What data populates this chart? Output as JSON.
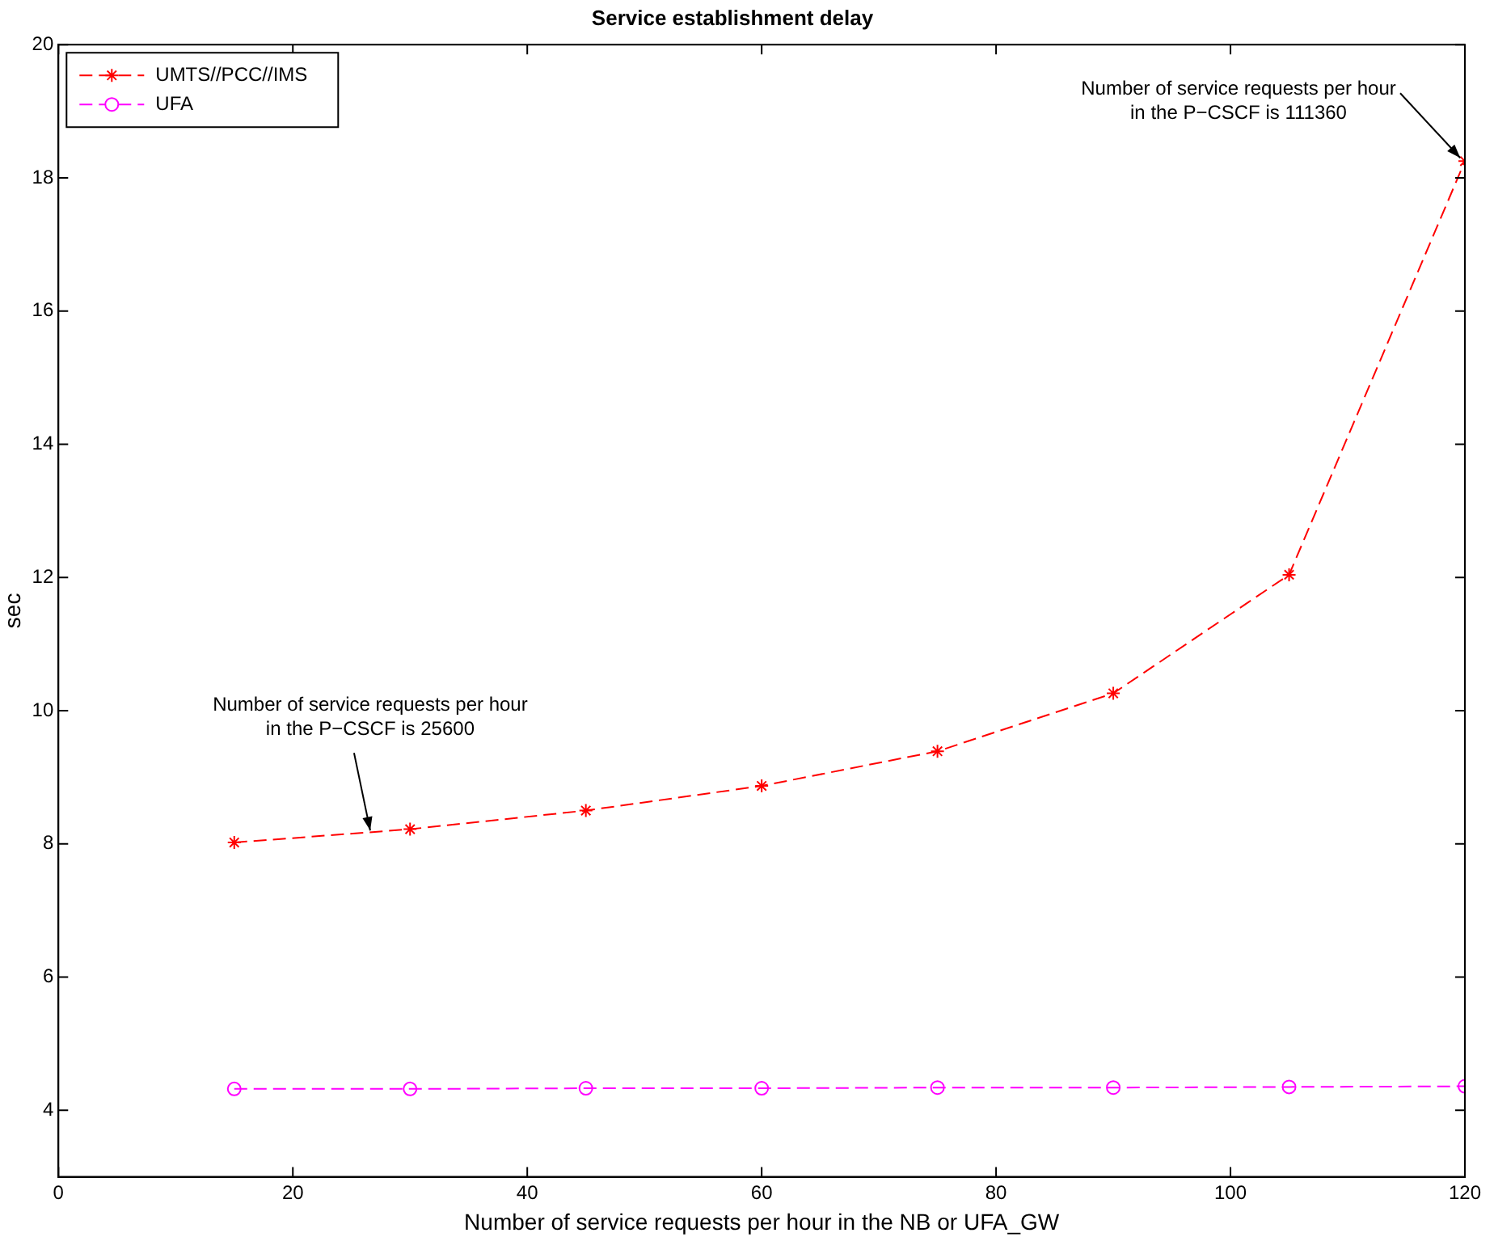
{
  "chart_data": {
    "type": "line",
    "title": "Service establishment delay",
    "xlabel": "Number of service requests per hour in the NB or UFA_GW",
    "ylabel": "sec",
    "x": [
      15,
      30,
      45,
      60,
      75,
      90,
      105,
      120
    ],
    "series": [
      {
        "name": "UMTS//PCC//IMS",
        "color": "#ff0000",
        "marker": "cross",
        "line_style": "dashed",
        "values": [
          8.02,
          8.22,
          8.5,
          8.87,
          9.39,
          10.26,
          12.04,
          18.25
        ]
      },
      {
        "name": "UFA",
        "color": "#ff00ff",
        "marker": "circle",
        "line_style": "dashed",
        "values": [
          4.32,
          4.32,
          4.33,
          4.33,
          4.34,
          4.34,
          4.35,
          4.36
        ]
      }
    ],
    "xlim": [
      0,
      120
    ],
    "xticks": [
      0,
      20,
      40,
      60,
      80,
      100,
      120
    ],
    "ylim": [
      3,
      20
    ],
    "yticks": [
      4,
      6,
      8,
      10,
      12,
      14,
      16,
      18,
      20
    ],
    "grid": false,
    "legend": "top left",
    "annotations": [
      {
        "text": "Number of service requests per hour\nin the P−CSCF is 25600",
        "x": 26.6,
        "y": 8.2
      },
      {
        "text": "Number of service requests per hour\nin the P−CSCF is 111360",
        "x": 119.6,
        "y": 18.3
      }
    ]
  }
}
